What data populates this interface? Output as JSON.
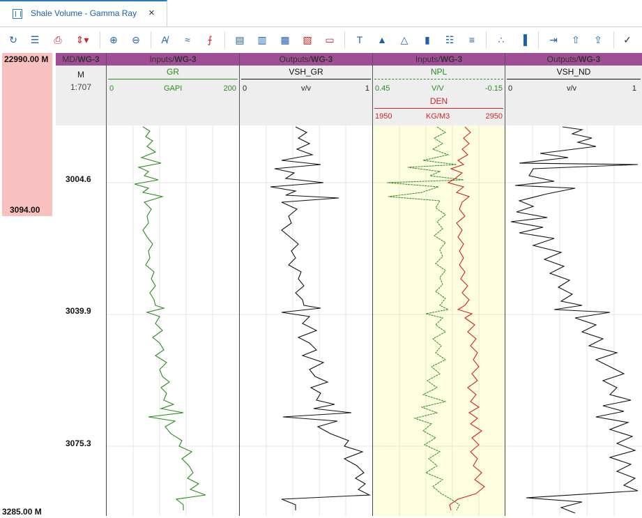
{
  "tab": {
    "title": "Shale Volume - Gamma Ray",
    "close": "×"
  },
  "toolbar": {
    "icons": [
      "refresh-icon",
      "list-icon",
      "print-icon",
      "expand-icon",
      "zoom-in-icon",
      "zoom-out-icon",
      "text-label-icon",
      "curve-fit-icon",
      "curve-tool-icon",
      "add-track-icon",
      "add-log-icon",
      "add-grid-icon",
      "add-fill-icon",
      "remove-track-icon",
      "add-text-icon",
      "add-image-icon",
      "image-icon",
      "add-bar-icon",
      "table-icon",
      "table-list-icon",
      "crossplot-icon",
      "histogram-icon",
      "export-icon",
      "upload-icon",
      "upload-up-icon",
      "check-icon"
    ]
  },
  "ruler": {
    "top": "22990.00 M",
    "band_end": "3094.00",
    "bottom": "3285.00 M"
  },
  "depth_track": {
    "head": "MD/",
    "well": "WG-3",
    "unit": "M",
    "scale": "1:707"
  },
  "depth_labels": [
    "3004.6",
    "3039.9",
    "3075.3"
  ],
  "tracks": [
    {
      "head": "Inputs/",
      "well": "WG-3",
      "curves": [
        {
          "name": "GR",
          "left": "0",
          "unit": "GAPI",
          "right": "200",
          "color": "#2a8a1f"
        }
      ]
    },
    {
      "head": "Outputs/",
      "well": "WG-3",
      "curves": [
        {
          "name": "VSH_GR",
          "left": "0",
          "unit": "v/v",
          "right": "1",
          "color": "#111111"
        }
      ]
    },
    {
      "head": "Inputs/",
      "well": "WG-3",
      "curves": [
        {
          "name": "NPL",
          "left": "0.45",
          "unit": "V/V",
          "right": "-0.15",
          "color": "#2a8a1f"
        },
        {
          "name": "DEN",
          "left": "1950",
          "unit": "KG/M3",
          "right": "2950",
          "color": "#d42222"
        }
      ]
    },
    {
      "head": "Outputs/",
      "well": "WG-3",
      "curves": [
        {
          "name": "VSH_ND",
          "left": "0",
          "unit": "v/v",
          "right": "1",
          "color": "#111111"
        }
      ]
    }
  ]
}
